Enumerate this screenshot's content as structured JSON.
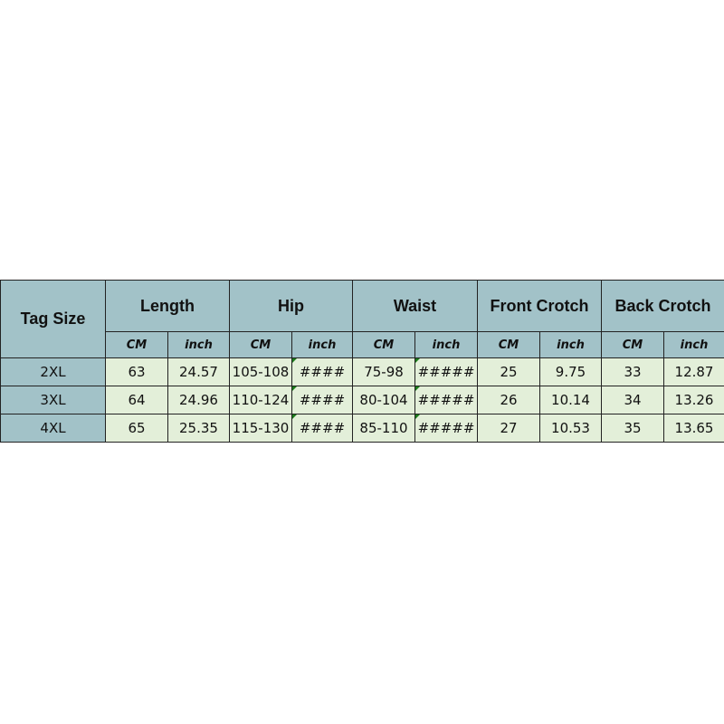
{
  "table": {
    "corner_label": "Tag Size",
    "groups": [
      "Length",
      "Hip",
      "Waist",
      "Front Crotch",
      "Back Crotch"
    ],
    "units": [
      "CM",
      "inch"
    ],
    "rows": [
      {
        "size": "2XL",
        "values": [
          "63",
          "24.57",
          "105-108",
          "####",
          "75-98",
          "#####",
          "25",
          "9.75",
          "33",
          "12.87"
        ]
      },
      {
        "size": "3XL",
        "values": [
          "64",
          "24.96",
          "110-124",
          "####",
          "80-104",
          "#####",
          "26",
          "10.14",
          "34",
          "13.26"
        ]
      },
      {
        "size": "4XL",
        "values": [
          "65",
          "25.35",
          "115-130",
          "####",
          "85-110",
          "#####",
          "27",
          "10.53",
          "35",
          "13.65"
        ]
      }
    ]
  },
  "colors": {
    "header": "#a2c2c8",
    "cell": "#e3efd9"
  }
}
